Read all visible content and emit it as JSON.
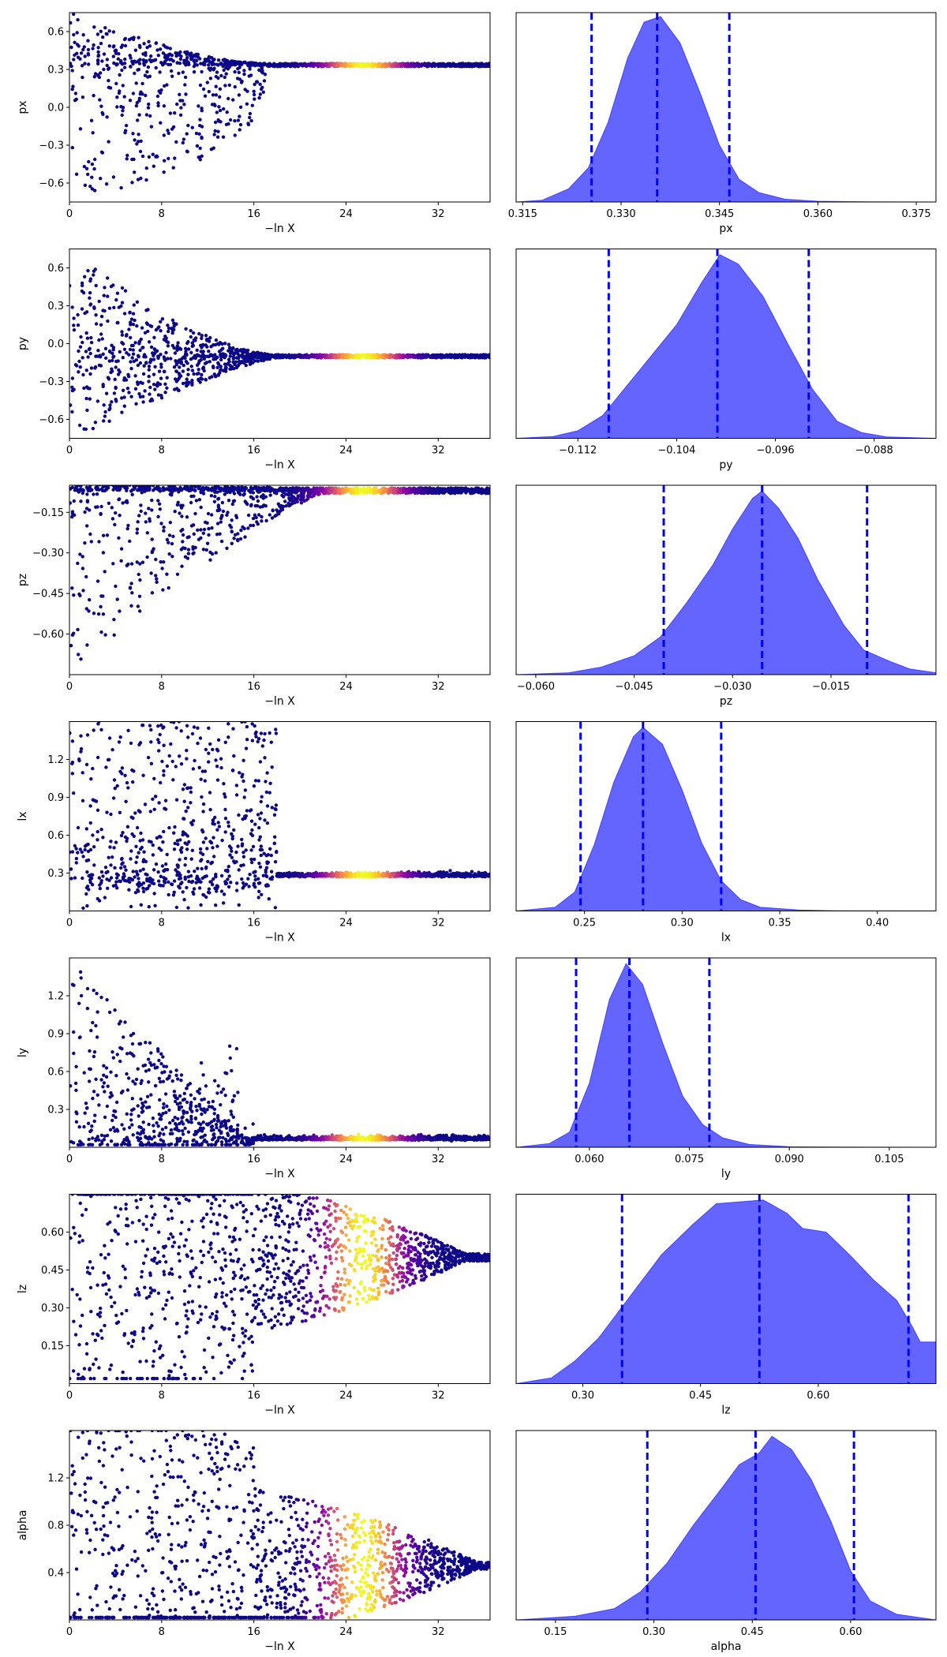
{
  "chart_data": [
    {
      "type": "scatter",
      "ylabel": "px",
      "xlabel": "−ln X",
      "xlim": [
        0,
        36.5
      ],
      "ylim": [
        -0.75,
        0.75
      ],
      "xticks": [
        0,
        8,
        16,
        24,
        32
      ],
      "xtick_labels": [
        "0",
        "8",
        "16",
        "24",
        "32"
      ],
      "yticks": [
        -0.6,
        -0.3,
        0.0,
        0.3,
        0.6
      ],
      "ytick_labels": [
        "−0.6",
        "−0.3",
        "0.0",
        "0.3",
        "0.6"
      ],
      "colormap": "plasma",
      "profile": {
        "kind": "converge",
        "center": 0.335,
        "top": 0.75,
        "bottom": -0.75,
        "converge_at": 17,
        "end_spread": 0.012
      }
    },
    {
      "type": "area",
      "xlabel": "px",
      "xlim": [
        0.314,
        0.378
      ],
      "xticks": [
        0.315,
        0.33,
        0.345,
        0.36,
        0.375
      ],
      "xtick_labels": [
        "0.315",
        "0.330",
        "0.345",
        "0.360",
        "0.375"
      ],
      "fill_color": "#6464ff",
      "line_color": "#0000ff",
      "density_x": [
        0.314,
        0.318,
        0.322,
        0.325,
        0.328,
        0.331,
        0.3335,
        0.336,
        0.339,
        0.342,
        0.345,
        0.348,
        0.351,
        0.355,
        0.36,
        0.368,
        0.378
      ],
      "density_y": [
        0.0,
        0.01,
        0.07,
        0.18,
        0.42,
        0.76,
        0.95,
        0.98,
        0.84,
        0.58,
        0.3,
        0.12,
        0.05,
        0.015,
        0.004,
        0.001,
        0.0
      ],
      "quantiles": [
        0.3255,
        0.3355,
        0.3465
      ]
    },
    {
      "type": "scatter",
      "ylabel": "py",
      "xlabel": "−ln X",
      "xlim": [
        0,
        36.5
      ],
      "ylim": [
        -0.75,
        0.75
      ],
      "xticks": [
        0,
        8,
        16,
        24,
        32
      ],
      "xtick_labels": [
        "0",
        "8",
        "16",
        "24",
        "32"
      ],
      "yticks": [
        -0.6,
        -0.3,
        0.0,
        0.3,
        0.6
      ],
      "ytick_labels": [
        "−0.6",
        "−0.3",
        "0.0",
        "0.3",
        "0.6"
      ],
      "colormap": "plasma",
      "profile": {
        "kind": "spike",
        "center": -0.1,
        "top": 0.75,
        "bottom": -0.75,
        "converge_at": 18,
        "end_spread": 0.012
      }
    },
    {
      "type": "area",
      "xlabel": "py",
      "xlim": [
        -0.117,
        -0.083
      ],
      "xticks": [
        -0.112,
        -0.104,
        -0.096,
        -0.088
      ],
      "xtick_labels": [
        "−0.112",
        "−0.104",
        "−0.096",
        "−0.088"
      ],
      "fill_color": "#6464ff",
      "line_color": "#0000ff",
      "density_x": [
        -0.117,
        -0.114,
        -0.112,
        -0.11,
        -0.108,
        -0.106,
        -0.104,
        -0.102,
        -0.1005,
        -0.099,
        -0.097,
        -0.095,
        -0.093,
        -0.091,
        -0.089,
        -0.087,
        -0.083
      ],
      "density_y": [
        0.0,
        0.01,
        0.04,
        0.12,
        0.28,
        0.44,
        0.6,
        0.82,
        0.97,
        0.92,
        0.75,
        0.5,
        0.26,
        0.09,
        0.03,
        0.008,
        0.0
      ],
      "quantiles": [
        -0.1095,
        -0.1007,
        -0.0933
      ]
    },
    {
      "type": "scatter",
      "ylabel": "pz",
      "xlabel": "−ln X",
      "xlim": [
        0,
        36.5
      ],
      "ylim": [
        -0.75,
        -0.05
      ],
      "xticks": [
        0,
        8,
        16,
        24,
        32
      ],
      "xtick_labels": [
        "0",
        "8",
        "16",
        "24",
        "32"
      ],
      "yticks": [
        -0.6,
        -0.45,
        -0.3,
        -0.15
      ],
      "ytick_labels": [
        "−0.60",
        "−0.45",
        "−0.30",
        "−0.15"
      ],
      "colormap": "plasma",
      "profile": {
        "kind": "curve-top",
        "center": -0.07,
        "top": -0.05,
        "bottom": -0.75,
        "converge_at": 22,
        "end_spread": 0.01
      }
    },
    {
      "type": "area",
      "xlabel": "pz",
      "xlim": [
        -0.063,
        0.001
      ],
      "xticks": [
        -0.06,
        -0.045,
        -0.03,
        -0.015
      ],
      "xtick_labels": [
        "−0.060",
        "−0.045",
        "−0.030",
        "−0.015"
      ],
      "fill_color": "#6464ff",
      "line_color": "#0000ff",
      "density_x": [
        -0.063,
        -0.055,
        -0.05,
        -0.045,
        -0.041,
        -0.037,
        -0.033,
        -0.03,
        -0.027,
        -0.0255,
        -0.023,
        -0.02,
        -0.017,
        -0.013,
        -0.01,
        -0.006,
        -0.003,
        0.001
      ],
      "density_y": [
        0.0,
        0.01,
        0.04,
        0.1,
        0.2,
        0.38,
        0.58,
        0.77,
        0.93,
        0.97,
        0.88,
        0.72,
        0.5,
        0.26,
        0.13,
        0.07,
        0.03,
        0.01
      ],
      "quantiles": [
        -0.0405,
        -0.0255,
        -0.0095
      ]
    },
    {
      "type": "scatter",
      "ylabel": "lx",
      "xlabel": "−ln X",
      "xlim": [
        0,
        36.5
      ],
      "ylim": [
        0.0,
        1.5
      ],
      "xticks": [
        0,
        8,
        16,
        24,
        32
      ],
      "xtick_labels": [
        "0",
        "8",
        "16",
        "24",
        "32"
      ],
      "yticks": [
        0.3,
        0.6,
        0.9,
        1.2
      ],
      "ytick_labels": [
        "0.3",
        "0.6",
        "0.9",
        "1.2"
      ],
      "colormap": "plasma",
      "profile": {
        "kind": "plateau",
        "center": 0.28,
        "top": 1.5,
        "bottom": 0.02,
        "converge_at": 18,
        "end_spread": 0.02
      }
    },
    {
      "type": "area",
      "xlabel": "lx",
      "xlim": [
        0.215,
        0.43
      ],
      "xticks": [
        0.25,
        0.3,
        0.35,
        0.4
      ],
      "xtick_labels": [
        "0.25",
        "0.30",
        "0.35",
        "0.40"
      ],
      "fill_color": "#6464ff",
      "line_color": "#0000ff",
      "density_x": [
        0.215,
        0.235,
        0.245,
        0.255,
        0.265,
        0.275,
        0.28,
        0.29,
        0.3,
        0.31,
        0.32,
        0.33,
        0.34,
        0.36,
        0.38,
        0.43
      ],
      "density_y": [
        0.0,
        0.02,
        0.1,
        0.35,
        0.68,
        0.92,
        0.97,
        0.88,
        0.64,
        0.36,
        0.16,
        0.06,
        0.02,
        0.005,
        0.001,
        0.0
      ],
      "quantiles": [
        0.248,
        0.28,
        0.32
      ]
    },
    {
      "type": "scatter",
      "ylabel": "ly",
      "xlabel": "−ln X",
      "xlim": [
        0,
        36.5
      ],
      "ylim": [
        0.0,
        1.5
      ],
      "xticks": [
        0,
        8,
        16,
        24,
        32
      ],
      "xtick_labels": [
        "0",
        "8",
        "16",
        "24",
        "32"
      ],
      "yticks": [
        0.3,
        0.6,
        0.9,
        1.2
      ],
      "ytick_labels": [
        "0.3",
        "0.6",
        "0.9",
        "1.2"
      ],
      "colormap": "plasma",
      "profile": {
        "kind": "decay",
        "center": 0.066,
        "top": 1.5,
        "bottom": 0.02,
        "converge_at": 16,
        "end_spread": 0.015
      }
    },
    {
      "type": "area",
      "xlabel": "ly",
      "xlim": [
        0.049,
        0.112
      ],
      "xticks": [
        0.06,
        0.075,
        0.09,
        0.105
      ],
      "xtick_labels": [
        "0.060",
        "0.075",
        "0.090",
        "0.105"
      ],
      "fill_color": "#6464ff",
      "line_color": "#0000ff",
      "density_x": [
        0.049,
        0.054,
        0.057,
        0.06,
        0.063,
        0.0655,
        0.068,
        0.071,
        0.074,
        0.077,
        0.08,
        0.084,
        0.09,
        0.1,
        0.112
      ],
      "density_y": [
        0.0,
        0.02,
        0.08,
        0.34,
        0.78,
        0.97,
        0.86,
        0.55,
        0.27,
        0.12,
        0.05,
        0.015,
        0.003,
        0.001,
        0.0
      ],
      "quantiles": [
        0.058,
        0.066,
        0.078
      ]
    },
    {
      "type": "scatter",
      "ylabel": "lz",
      "xlabel": "−ln X",
      "xlim": [
        0,
        36.5
      ],
      "ylim": [
        0.0,
        0.75
      ],
      "xticks": [
        0,
        8,
        16,
        24,
        32
      ],
      "xtick_labels": [
        "0",
        "8",
        "16",
        "24",
        "32"
      ],
      "yticks": [
        0.15,
        0.3,
        0.45,
        0.6
      ],
      "ytick_labels": [
        "0.15",
        "0.30",
        "0.45",
        "0.60"
      ],
      "colormap": "plasma",
      "profile": {
        "kind": "funnel",
        "center": 0.5,
        "top": 0.75,
        "bottom": 0.02,
        "converge_at": 35,
        "end_spread": 0.03
      }
    },
    {
      "type": "area",
      "xlabel": "lz",
      "xlim": [
        0.215,
        0.75
      ],
      "xticks": [
        0.3,
        0.45,
        0.6
      ],
      "xtick_labels": [
        "0.30",
        "0.45",
        "0.60"
      ],
      "fill_color": "#6464ff",
      "line_color": "#0000ff",
      "density_x": [
        0.215,
        0.26,
        0.29,
        0.32,
        0.36,
        0.4,
        0.44,
        0.47,
        0.5,
        0.53,
        0.56,
        0.58,
        0.61,
        0.64,
        0.67,
        0.7,
        0.72,
        0.73,
        0.75
      ],
      "density_y": [
        0.0,
        0.03,
        0.12,
        0.24,
        0.46,
        0.68,
        0.84,
        0.95,
        0.96,
        0.97,
        0.9,
        0.82,
        0.8,
        0.68,
        0.55,
        0.44,
        0.3,
        0.22,
        0.22
      ],
      "quantiles": [
        0.35,
        0.525,
        0.715
      ]
    },
    {
      "type": "scatter",
      "ylabel": "alpha",
      "xlabel": "−ln X",
      "xlim": [
        0,
        36.5
      ],
      "ylim": [
        0.0,
        1.6
      ],
      "xticks": [
        0,
        8,
        16,
        24,
        32
      ],
      "xtick_labels": [
        "0",
        "8",
        "16",
        "24",
        "32"
      ],
      "yticks": [
        0.4,
        0.8,
        1.2
      ],
      "ytick_labels": [
        "0.4",
        "0.8",
        "1.2"
      ],
      "colormap": "plasma",
      "profile": {
        "kind": "funnel",
        "center": 0.46,
        "top": 1.6,
        "bottom": 0.02,
        "converge_at": 36,
        "end_spread": 0.03
      }
    },
    {
      "type": "area",
      "xlabel": "alpha",
      "xlim": [
        0.09,
        0.73
      ],
      "xticks": [
        0.15,
        0.3,
        0.45,
        0.6
      ],
      "xtick_labels": [
        "0.15",
        "0.30",
        "0.45",
        "0.60"
      ],
      "fill_color": "#6464ff",
      "line_color": "#0000ff",
      "density_x": [
        0.09,
        0.18,
        0.24,
        0.28,
        0.32,
        0.36,
        0.4,
        0.43,
        0.46,
        0.48,
        0.51,
        0.54,
        0.57,
        0.6,
        0.63,
        0.67,
        0.73
      ],
      "density_y": [
        0.0,
        0.02,
        0.06,
        0.15,
        0.3,
        0.5,
        0.68,
        0.82,
        0.88,
        0.97,
        0.9,
        0.74,
        0.52,
        0.26,
        0.1,
        0.03,
        0.0
      ],
      "quantiles": [
        0.29,
        0.455,
        0.605
      ]
    }
  ]
}
